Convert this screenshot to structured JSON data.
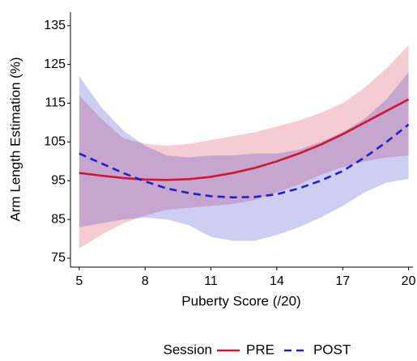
{
  "chart_data": {
    "type": "line",
    "x_label": "Puberty Score (/20)",
    "y_label": "Arm Length Estimation (%)",
    "legend_title": "Session",
    "legend": "bottom",
    "x": [
      5,
      6,
      7,
      8,
      9,
      10,
      11,
      12,
      13,
      14,
      15,
      16,
      17,
      18,
      19,
      20
    ],
    "xlim": [
      4.6,
      20.2
    ],
    "xticks": [
      5,
      8,
      11,
      14,
      17,
      20
    ],
    "ylim": [
      72.7,
      138.5
    ],
    "yticks": [
      75,
      85,
      95,
      105,
      115,
      125,
      135
    ],
    "grid": false,
    "series": [
      {
        "name": "PRE",
        "color": "#d1172e",
        "dash": false,
        "values": [
          97,
          96.3,
          95.7,
          95.3,
          95.2,
          95.4,
          96,
          97,
          98.3,
          100,
          102,
          104.3,
          107,
          110,
          113,
          116
        ],
        "lower": [
          77.5,
          81,
          84,
          86,
          87.5,
          88,
          88.5,
          89,
          90,
          92,
          94,
          96.5,
          98.5,
          100,
          101,
          101.5
        ],
        "upper": [
          117,
          111,
          106,
          104.5,
          104,
          104.5,
          105.5,
          106.5,
          107.5,
          109,
          110.5,
          112.5,
          115,
          119,
          124,
          130
        ]
      },
      {
        "name": "POST",
        "color": "#2020c8",
        "dash": true,
        "values": [
          102,
          99.5,
          97,
          94.8,
          93,
          91.8,
          91,
          90.7,
          90.8,
          91.5,
          93,
          95,
          97.5,
          101,
          105,
          109.5
        ],
        "lower": [
          83,
          84,
          85,
          85.5,
          85,
          83.5,
          80.5,
          79.5,
          79.5,
          81,
          83,
          85.5,
          88.5,
          92,
          94.5,
          95.5
        ],
        "upper": [
          122,
          114,
          108,
          104,
          101.5,
          101,
          101.5,
          101.5,
          102,
          102,
          103,
          105,
          107.5,
          111,
          116,
          123
        ]
      }
    ]
  }
}
